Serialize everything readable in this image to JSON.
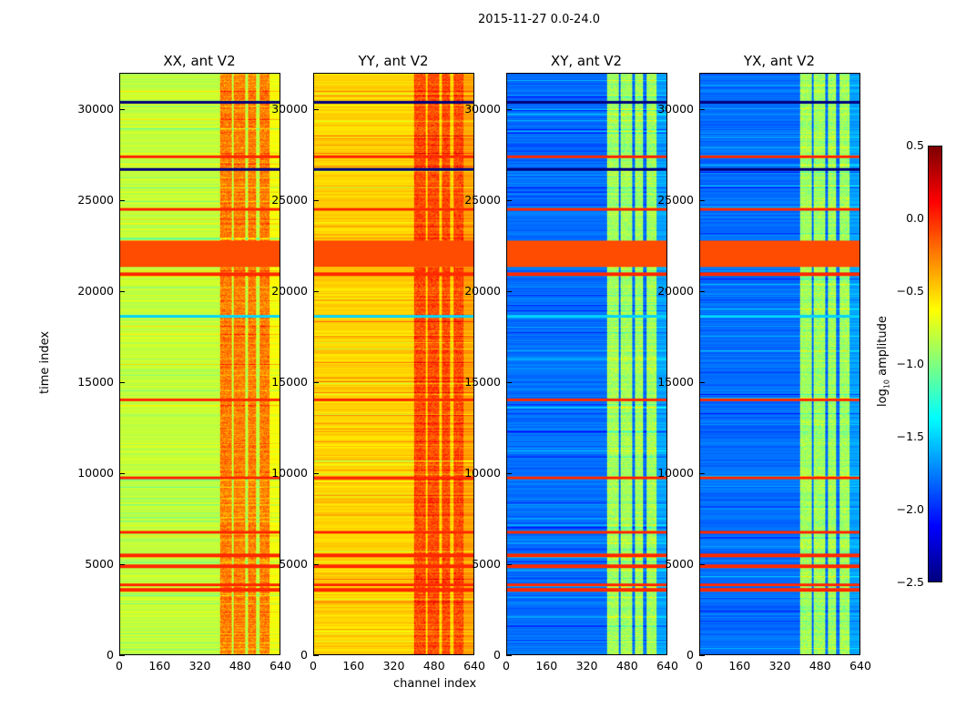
{
  "suptitle": "2015-11-27 0.0-24.0",
  "chart_data": {
    "type": "heatmap",
    "title": "2015-11-27 0.0-24.0",
    "xlabel": "channel index",
    "ylabel": "time index",
    "xlim": [
      0,
      640
    ],
    "ylim": [
      0,
      32000
    ],
    "xticks": [
      0,
      160,
      320,
      480,
      640
    ],
    "yticks": [
      0,
      5000,
      10000,
      15000,
      20000,
      25000,
      30000
    ],
    "colormap": "jet",
    "panels": [
      {
        "title": "XX, ant V2",
        "base_level": -0.8,
        "rfi_level": -0.25
      },
      {
        "title": "YY, ant V2",
        "base_level": -0.5,
        "rfi_level": -0.1
      },
      {
        "title": "XY, ant V2",
        "base_level": -1.8,
        "rfi_level": -0.9
      },
      {
        "title": "YX, ant V2",
        "base_level": -1.8,
        "rfi_level": -0.9
      }
    ],
    "rfi_channel_ranges": [
      [
        400,
        445
      ],
      [
        455,
        500
      ],
      [
        510,
        545
      ],
      [
        560,
        600
      ]
    ],
    "flagged_time_bands": [
      {
        "start": 21400,
        "end": 22800,
        "level": -0.1
      },
      {
        "start": 20900,
        "end": 21050,
        "level": 0.0
      },
      {
        "start": 5400,
        "end": 5550,
        "level": 0.0
      },
      {
        "start": 4800,
        "end": 4950,
        "level": 0.0
      },
      {
        "start": 3500,
        "end": 3650,
        "level": 0.0
      },
      {
        "start": 3800,
        "end": 3900,
        "level": 0.0
      },
      {
        "start": 6700,
        "end": 6800,
        "level": 0.0
      },
      {
        "start": 9700,
        "end": 9800,
        "level": 0.0
      },
      {
        "start": 14000,
        "end": 14100,
        "level": 0.0
      },
      {
        "start": 18600,
        "end": 18700,
        "level": -1.5
      },
      {
        "start": 24500,
        "end": 24600,
        "level": 0.0
      },
      {
        "start": 26700,
        "end": 26800,
        "level": -2.5
      },
      {
        "start": 27400,
        "end": 27500,
        "level": 0.0
      },
      {
        "start": 30400,
        "end": 30500,
        "level": -2.5
      }
    ],
    "colorbar": {
      "label": "log10 amplitude",
      "label_main": "log",
      "label_sub": "10",
      "label_rest": " amplitude",
      "range": [
        -2.5,
        0.5
      ],
      "ticks": [
        "0.5",
        "0.0",
        "−0.5",
        "−1.0",
        "−1.5",
        "−2.0",
        "−2.5"
      ],
      "tick_values": [
        0.5,
        0.0,
        -0.5,
        -1.0,
        -1.5,
        -2.0,
        -2.5
      ]
    }
  }
}
